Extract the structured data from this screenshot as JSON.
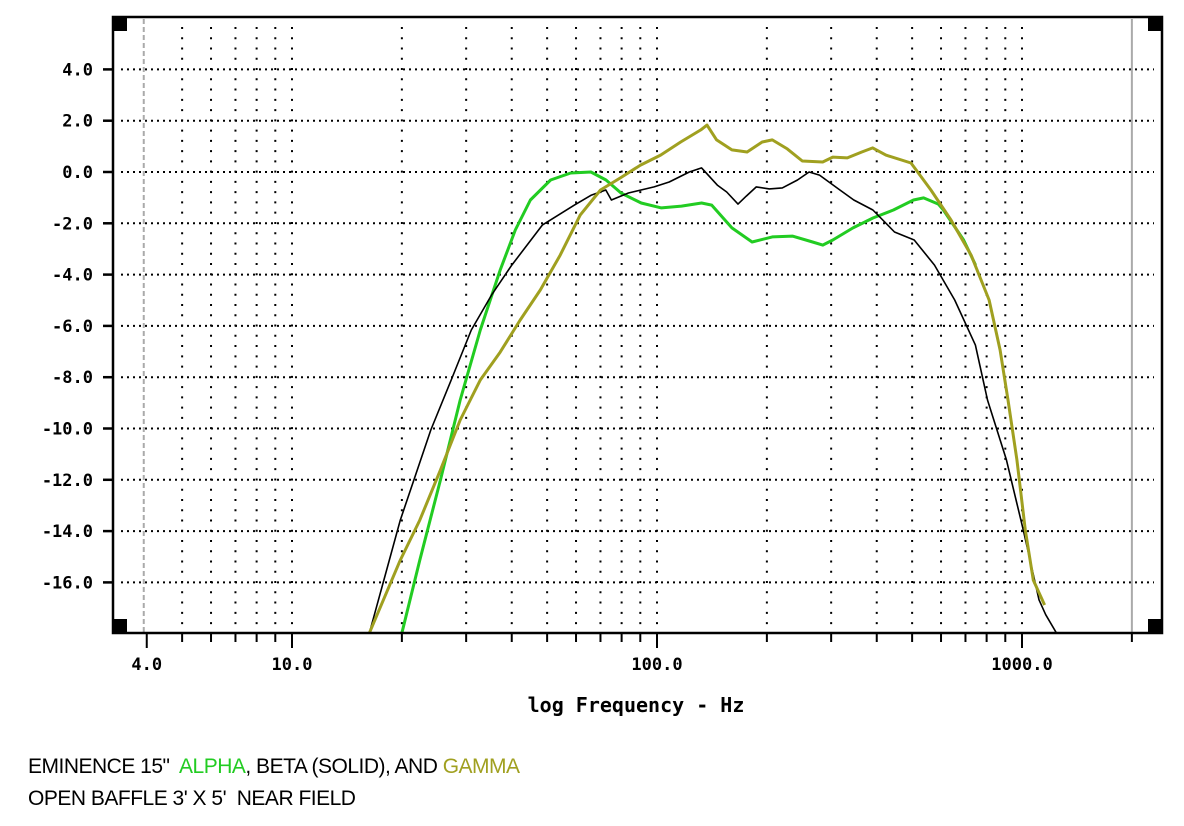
{
  "chart_data": {
    "type": "line",
    "title": "",
    "xlabel": "log Frequency - Hz",
    "ylabel": "",
    "xscale": "log",
    "xlim": [
      3.25,
      2400
    ],
    "ylim": [
      -18,
      6.1
    ],
    "grid": true,
    "x_tick_labels": [
      {
        "value": 4,
        "label": "4.0"
      },
      {
        "value": 10,
        "label": "10.0"
      },
      {
        "value": 100,
        "label": "100.0"
      },
      {
        "value": 1000,
        "label": "1000.0"
      }
    ],
    "x_minor_ticks": [
      5,
      6,
      7,
      8,
      9,
      20,
      30,
      40,
      50,
      60,
      70,
      80,
      90,
      200,
      300,
      400,
      500,
      600,
      700,
      800,
      900,
      2000
    ],
    "y_tick_labels": [
      {
        "value": 4,
        "label": "4.0"
      },
      {
        "value": 2,
        "label": "2.0"
      },
      {
        "value": 0,
        "label": "0.0"
      },
      {
        "value": -2,
        "label": "-2.0"
      },
      {
        "value": -4,
        "label": "-4.0"
      },
      {
        "value": -6,
        "label": "-6.0"
      },
      {
        "value": -8,
        "label": "-8.0"
      },
      {
        "value": -10,
        "label": "-10.0"
      },
      {
        "value": -12,
        "label": "-12.0"
      },
      {
        "value": -14,
        "label": "-14.0"
      },
      {
        "value": -16,
        "label": "-16.0"
      }
    ],
    "series": [
      {
        "name": "ALPHA",
        "color": "#22cc22",
        "x": [
          20.0,
          22.4,
          25.5,
          28.9,
          32.8,
          37.2,
          40.9,
          45.0,
          51.1,
          58.0,
          65.9,
          72.5,
          79.7,
          90.5,
          102.8,
          116.7,
          132.5,
          141.2,
          160.4,
          182.2,
          206.9,
          235.0,
          266.9,
          284.5,
          303.2,
          344.4,
          391.1,
          444.2,
          504.5,
          537.7,
          590.2,
          609.1,
          691.7,
          746.4
        ],
        "y": [
          -17.97,
          -15.13,
          -12.01,
          -8.89,
          -6.16,
          -3.82,
          -2.26,
          -1.09,
          -0.31,
          -0.04,
          0.0,
          -0.31,
          -0.82,
          -1.21,
          -1.4,
          -1.33,
          -1.21,
          -1.29,
          -2.18,
          -2.73,
          -2.53,
          -2.5,
          -2.73,
          -2.85,
          -2.65,
          -2.18,
          -1.79,
          -1.48,
          -1.09,
          -1.01,
          -1.25,
          -1.48,
          -2.65,
          -3.63
        ]
      },
      {
        "name": "BETA (SOLID)",
        "color": "#000000",
        "x": [
          16.3,
          19.8,
          24.0,
          27.3,
          31.0,
          35.2,
          40.0,
          48.5,
          59.4,
          66.1,
          72.4,
          75.0,
          83.5,
          98.2,
          108.0,
          122.6,
          132.5,
          146.3,
          155.2,
          166.7,
          175.6,
          187.1,
          203.2,
          220.5,
          242.6,
          261.1,
          278.8,
          317.1,
          346.1,
          390.5,
          447.3,
          506.6,
          575.7,
          654.2,
          745.4,
          804.6,
          906.2,
          1008.0,
          1113.3,
          1161.2,
          1242.0
        ],
        "y": [
          -17.97,
          -13.57,
          -10.06,
          -8.11,
          -6.16,
          -4.8,
          -3.63,
          -2.07,
          -1.29,
          -0.9,
          -0.7,
          -1.09,
          -0.82,
          -0.58,
          -0.39,
          0.0,
          0.16,
          -0.51,
          -0.78,
          -1.25,
          -0.94,
          -0.58,
          -0.66,
          -0.62,
          -0.31,
          0.0,
          -0.12,
          -0.7,
          -1.09,
          -1.48,
          -2.34,
          -2.65,
          -3.63,
          -4.99,
          -6.75,
          -8.89,
          -11.22,
          -13.96,
          -16.68,
          -17.26,
          -17.97
        ]
      },
      {
        "name": "GAMMA",
        "color": "#a0a020",
        "x": [
          16.3,
          19.8,
          22.4,
          25.5,
          28.9,
          32.8,
          37.2,
          42.2,
          47.9,
          54.3,
          61.6,
          70.0,
          79.4,
          90.1,
          102.3,
          116.1,
          131.8,
          137.1,
          145.6,
          160.4,
          176.5,
          194.2,
          206.9,
          227.5,
          250.1,
          284.5,
          303.2,
          332.1,
          363.9,
          389.9,
          423.8,
          496.4,
          562.9,
          638.8,
          725.3,
          812.7,
          870.9,
          915.4,
          968.1,
          1021.3,
          1074.0,
          1153.0
        ],
        "y": [
          -17.97,
          -15.13,
          -13.57,
          -11.62,
          -9.67,
          -8.11,
          -7.02,
          -5.77,
          -4.6,
          -3.24,
          -1.68,
          -0.7,
          -0.23,
          0.27,
          0.66,
          1.17,
          1.64,
          1.83,
          1.25,
          0.86,
          0.78,
          1.17,
          1.25,
          0.9,
          0.43,
          0.39,
          0.58,
          0.55,
          0.78,
          0.94,
          0.66,
          0.35,
          -0.7,
          -1.87,
          -3.24,
          -4.99,
          -6.94,
          -8.89,
          -11.22,
          -13.96,
          -15.91,
          -16.88
        ]
      }
    ]
  },
  "caption": {
    "line1_prefix": "EMINENCE 15\"  ",
    "line1_alpha": "ALPHA",
    "line1_middle": ", BETA (SOLID), AND ",
    "line1_gamma": "GAMMA",
    "line2": "OPEN BAFFLE 3' X 5'  NEAR FIELD",
    "alpha_color": "#22cc22",
    "gamma_color": "#a0a020"
  }
}
